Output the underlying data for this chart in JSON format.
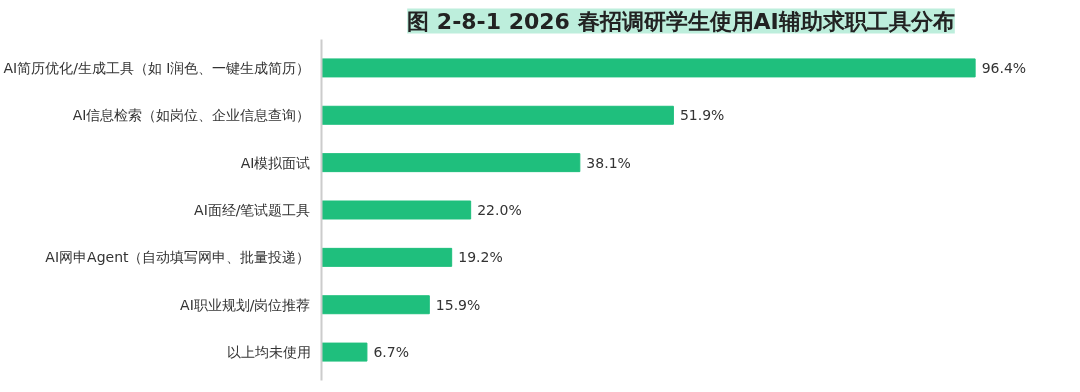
{
  "chart_data": {
    "type": "bar",
    "orientation": "horizontal",
    "title": "图 2-8-1 2026 春招调研学生使用AI辅助求职工具分布",
    "categories": [
      "AI简历优化/生成工具（如 I润色、一键生成简历）",
      "AI信息检索（如岗位、企业信息查询）",
      "AI模拟面试",
      "AI面经/笔试题工具",
      "AI网申Agent（自动填写网申、批量投递）",
      "AI职业规划/岗位推荐",
      "以上均未使用"
    ],
    "values": [
      96.4,
      51.9,
      38.1,
      22.0,
      19.2,
      15.9,
      6.7
    ],
    "value_labels": [
      "96.4%",
      "51.9%",
      "38.1%",
      "22.0%",
      "19.2%",
      "15.9%",
      "6.7%"
    ],
    "color": "#1fbf7d",
    "grid": false
  }
}
